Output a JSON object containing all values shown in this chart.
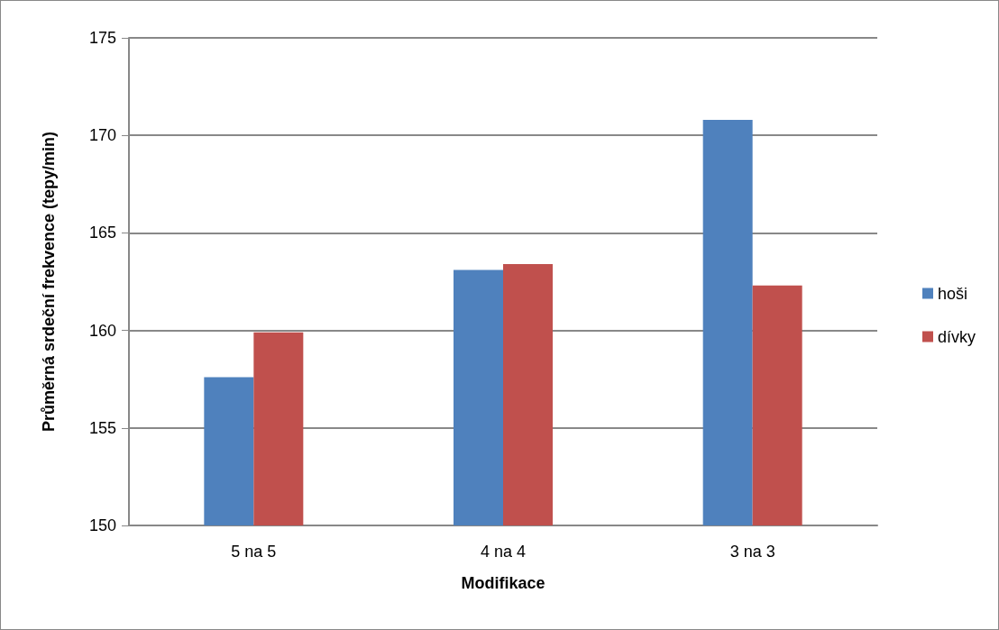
{
  "chart_data": {
    "type": "bar",
    "xlabel": "Modifikace",
    "ylabel": "Průměrná srdeční frekvence (tepy/min)",
    "categories": [
      "5 na 5",
      "4 na 4",
      "3 na 3"
    ],
    "series": [
      {
        "name": "hoši",
        "color": "#4f81bd",
        "values": [
          157.6,
          163.1,
          170.8
        ]
      },
      {
        "name": "dívky",
        "color": "#c0504d",
        "values": [
          159.9,
          163.4,
          162.3
        ]
      }
    ],
    "ylim": [
      150,
      175
    ],
    "yticks": [
      150,
      155,
      160,
      165,
      170,
      175
    ],
    "grid": "y",
    "legend": "right"
  }
}
